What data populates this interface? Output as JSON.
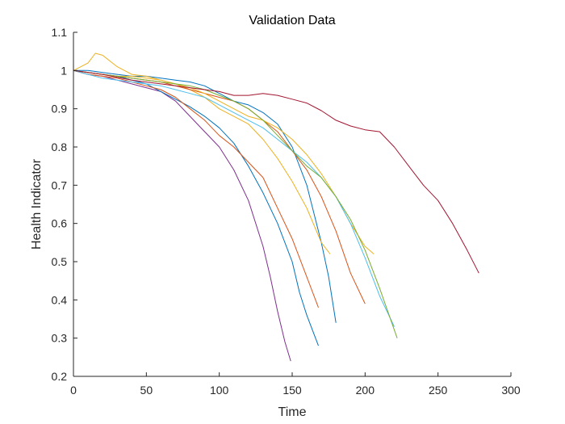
{
  "chart_data": {
    "type": "line",
    "title": "Validation Data",
    "xlabel": "Time",
    "ylabel": "Health Indicator",
    "xlim": [
      0,
      300
    ],
    "ylim": [
      0.2,
      1.1
    ],
    "xticks": [
      "0",
      "50",
      "100",
      "150",
      "200",
      "250",
      "300"
    ],
    "yticks": [
      "0.2",
      "0.3",
      "0.4",
      "0.5",
      "0.6",
      "0.7",
      "0.8",
      "0.9",
      "1",
      "1.1"
    ],
    "grid": false,
    "legend": "none",
    "series": [
      {
        "color": "#7E2F8E",
        "x": [
          0,
          10,
          20,
          30,
          40,
          50,
          60,
          70,
          80,
          90,
          100,
          110,
          120,
          130,
          135,
          140,
          145,
          149
        ],
        "y": [
          1.0,
          0.99,
          0.985,
          0.975,
          0.965,
          0.955,
          0.945,
          0.92,
          0.88,
          0.84,
          0.8,
          0.74,
          0.66,
          0.54,
          0.46,
          0.37,
          0.29,
          0.24
        ]
      },
      {
        "color": "#0072BD",
        "x": [
          0,
          10,
          20,
          30,
          40,
          50,
          60,
          70,
          80,
          90,
          100,
          110,
          120,
          130,
          140,
          150,
          155,
          160,
          165,
          168
        ],
        "y": [
          1.0,
          0.995,
          0.99,
          0.985,
          0.975,
          0.965,
          0.945,
          0.925,
          0.905,
          0.88,
          0.85,
          0.81,
          0.75,
          0.68,
          0.6,
          0.5,
          0.42,
          0.36,
          0.31,
          0.28
        ]
      },
      {
        "color": "#D95319",
        "x": [
          0,
          10,
          20,
          30,
          40,
          50,
          60,
          70,
          80,
          90,
          100,
          110,
          120,
          130,
          140,
          150,
          160,
          168
        ],
        "y": [
          1.0,
          0.99,
          0.985,
          0.98,
          0.97,
          0.96,
          0.95,
          0.93,
          0.9,
          0.87,
          0.83,
          0.8,
          0.76,
          0.72,
          0.64,
          0.56,
          0.46,
          0.38
        ]
      },
      {
        "color": "#0072BD",
        "x": [
          0,
          10,
          20,
          30,
          40,
          50,
          60,
          70,
          80,
          90,
          100,
          110,
          120,
          130,
          140,
          150,
          160,
          170,
          175,
          180
        ],
        "y": [
          1.0,
          1.0,
          0.995,
          0.99,
          0.985,
          0.985,
          0.98,
          0.975,
          0.97,
          0.96,
          0.94,
          0.92,
          0.91,
          0.89,
          0.86,
          0.8,
          0.7,
          0.55,
          0.46,
          0.34
        ]
      },
      {
        "color": "#EDB120",
        "x": [
          0,
          10,
          15,
          20,
          30,
          40,
          50,
          60,
          70,
          80,
          90,
          100,
          110,
          120,
          130,
          140,
          150,
          160,
          170,
          176
        ],
        "y": [
          1.0,
          1.02,
          1.045,
          1.04,
          1.01,
          0.99,
          0.985,
          0.975,
          0.965,
          0.95,
          0.93,
          0.9,
          0.88,
          0.86,
          0.82,
          0.77,
          0.71,
          0.64,
          0.55,
          0.52
        ]
      },
      {
        "color": "#D95319",
        "x": [
          0,
          10,
          20,
          30,
          40,
          50,
          60,
          70,
          80,
          90,
          100,
          110,
          120,
          130,
          140,
          150,
          160,
          170,
          180,
          190,
          200
        ],
        "y": [
          1.0,
          0.995,
          0.99,
          0.985,
          0.98,
          0.975,
          0.97,
          0.96,
          0.95,
          0.94,
          0.93,
          0.92,
          0.9,
          0.87,
          0.84,
          0.79,
          0.74,
          0.67,
          0.58,
          0.47,
          0.39
        ]
      },
      {
        "color": "#EDB120",
        "x": [
          0,
          10,
          20,
          30,
          40,
          50,
          60,
          70,
          80,
          90,
          100,
          110,
          120,
          130,
          140,
          150,
          160,
          170,
          180,
          190,
          200,
          206
        ],
        "y": [
          1.0,
          0.995,
          0.99,
          0.985,
          0.985,
          0.98,
          0.975,
          0.965,
          0.955,
          0.94,
          0.92,
          0.9,
          0.88,
          0.87,
          0.85,
          0.82,
          0.78,
          0.73,
          0.67,
          0.6,
          0.54,
          0.52
        ]
      },
      {
        "color": "#4DBEEE",
        "x": [
          0,
          10,
          20,
          30,
          40,
          50,
          60,
          70,
          80,
          90,
          100,
          110,
          120,
          130,
          140,
          150,
          160,
          170,
          180,
          190,
          200,
          210,
          220
        ],
        "y": [
          1.0,
          0.99,
          0.98,
          0.975,
          0.97,
          0.965,
          0.96,
          0.95,
          0.94,
          0.93,
          0.91,
          0.89,
          0.87,
          0.85,
          0.82,
          0.79,
          0.76,
          0.72,
          0.67,
          0.6,
          0.51,
          0.41,
          0.33
        ]
      },
      {
        "color": "#77AC30",
        "x": [
          0,
          10,
          20,
          30,
          40,
          50,
          60,
          70,
          80,
          90,
          100,
          110,
          120,
          130,
          140,
          150,
          160,
          170,
          180,
          190,
          200,
          210,
          222
        ],
        "y": [
          1.0,
          0.995,
          0.99,
          0.985,
          0.98,
          0.975,
          0.97,
          0.965,
          0.96,
          0.95,
          0.935,
          0.92,
          0.9,
          0.87,
          0.83,
          0.79,
          0.75,
          0.72,
          0.67,
          0.61,
          0.53,
          0.43,
          0.3
        ]
      },
      {
        "color": "#A2142F",
        "x": [
          0,
          20,
          40,
          60,
          80,
          100,
          110,
          120,
          130,
          140,
          150,
          160,
          170,
          180,
          190,
          200,
          210,
          220,
          230,
          240,
          250,
          260,
          270,
          278
        ],
        "y": [
          1.0,
          0.99,
          0.975,
          0.965,
          0.955,
          0.945,
          0.935,
          0.935,
          0.94,
          0.935,
          0.925,
          0.915,
          0.895,
          0.87,
          0.855,
          0.845,
          0.84,
          0.8,
          0.75,
          0.7,
          0.66,
          0.6,
          0.53,
          0.47
        ]
      }
    ]
  }
}
